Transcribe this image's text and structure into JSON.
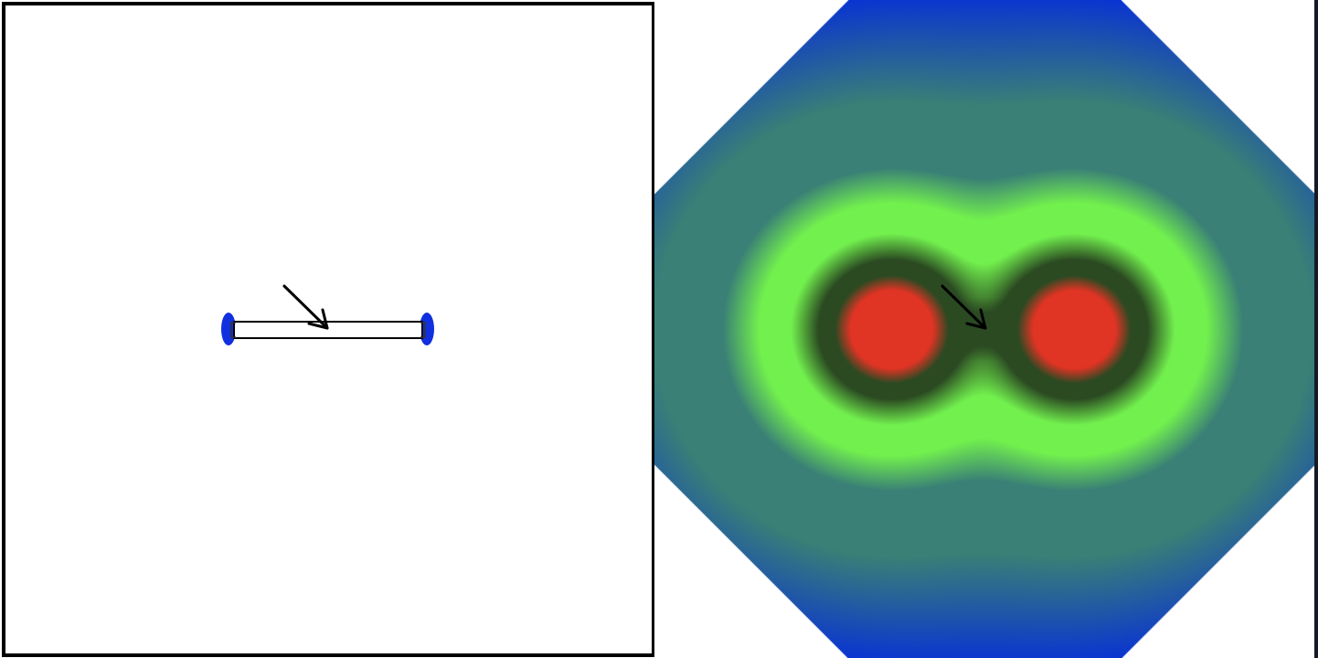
{
  "scene": {
    "left_view": {
      "mode": "geometry",
      "border_color": "#000000",
      "endcap_color": "#1030e0",
      "body_fill": "#ffffff",
      "arrow_icon": "arrow-down-right-icon"
    },
    "right_view": {
      "mode": "field-heatmap",
      "shape": "octagon",
      "colors": {
        "core": "#e03424",
        "ring": "#2b4a22",
        "mid": "#72f04e",
        "outer": "#3a8076",
        "edge": "#0a34d2"
      },
      "arrow_icon": "arrow-down-right-icon"
    }
  }
}
